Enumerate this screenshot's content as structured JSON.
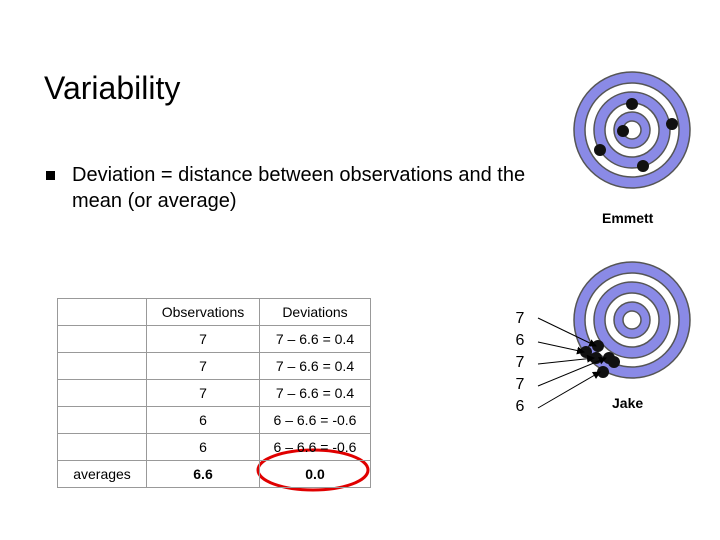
{
  "title": "Variability",
  "bullet": "Deviation = distance between observations and the mean (or average)",
  "table": {
    "header": [
      "",
      "Observations",
      "Deviations"
    ],
    "rows": [
      [
        "",
        "7",
        "7 – 6.6 = 0.4"
      ],
      [
        "",
        "7",
        "7 – 6.6 = 0.4"
      ],
      [
        "",
        "7",
        "7 – 6.6 = 0.4"
      ],
      [
        "",
        "6",
        "6 – 6.6 = -0.6"
      ],
      [
        "",
        "6",
        "6 – 6.6 = -0.6"
      ]
    ],
    "averages": [
      "averages",
      "6.6",
      "0.0"
    ]
  },
  "targets": [
    {
      "label": "Emmett"
    },
    {
      "label": "Jake"
    }
  ],
  "numbers": [
    "7",
    "6",
    "7",
    "7",
    "6"
  ]
}
